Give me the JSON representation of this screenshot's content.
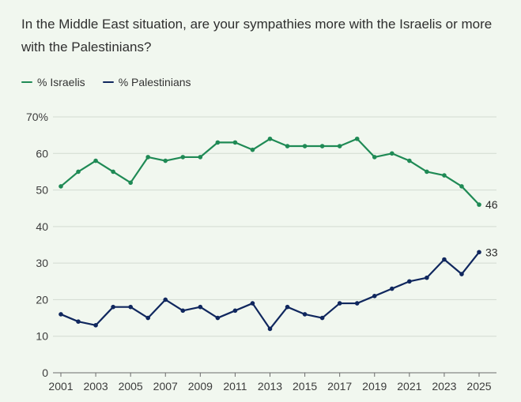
{
  "chart_data": {
    "type": "line",
    "title": "In the Middle East situation, are your sympathies more with the Israelis or more with the Palestinians?",
    "x": [
      2001,
      2002,
      2003,
      2004,
      2005,
      2006,
      2007,
      2008,
      2009,
      2010,
      2011,
      2012,
      2013,
      2014,
      2015,
      2016,
      2017,
      2018,
      2019,
      2020,
      2021,
      2022,
      2023,
      2024,
      2025
    ],
    "x_tick_labels": [
      "2001",
      "2003",
      "2005",
      "2007",
      "2009",
      "2011",
      "2013",
      "2015",
      "2017",
      "2019",
      "2021",
      "2023",
      "2025"
    ],
    "y_tick_labels": [
      "70%",
      "60",
      "50",
      "40",
      "30",
      "20",
      "10",
      "0"
    ],
    "ylim": [
      0,
      70
    ],
    "grid": true,
    "legend_position": "top-left",
    "series": [
      {
        "name": "% Israelis",
        "color": "#1f8a55",
        "values": [
          51,
          55,
          58,
          55,
          52,
          59,
          58,
          59,
          59,
          63,
          63,
          61,
          64,
          62,
          62,
          62,
          62,
          64,
          59,
          60,
          58,
          55,
          54,
          51,
          46
        ],
        "end_label": "46"
      },
      {
        "name": "% Palestinians",
        "color": "#10275e",
        "values": [
          16,
          14,
          13,
          18,
          18,
          15,
          20,
          17,
          18,
          15,
          17,
          19,
          12,
          18,
          16,
          15,
          19,
          19,
          21,
          23,
          25,
          26,
          31,
          27,
          33
        ],
        "end_label": "33"
      }
    ]
  }
}
